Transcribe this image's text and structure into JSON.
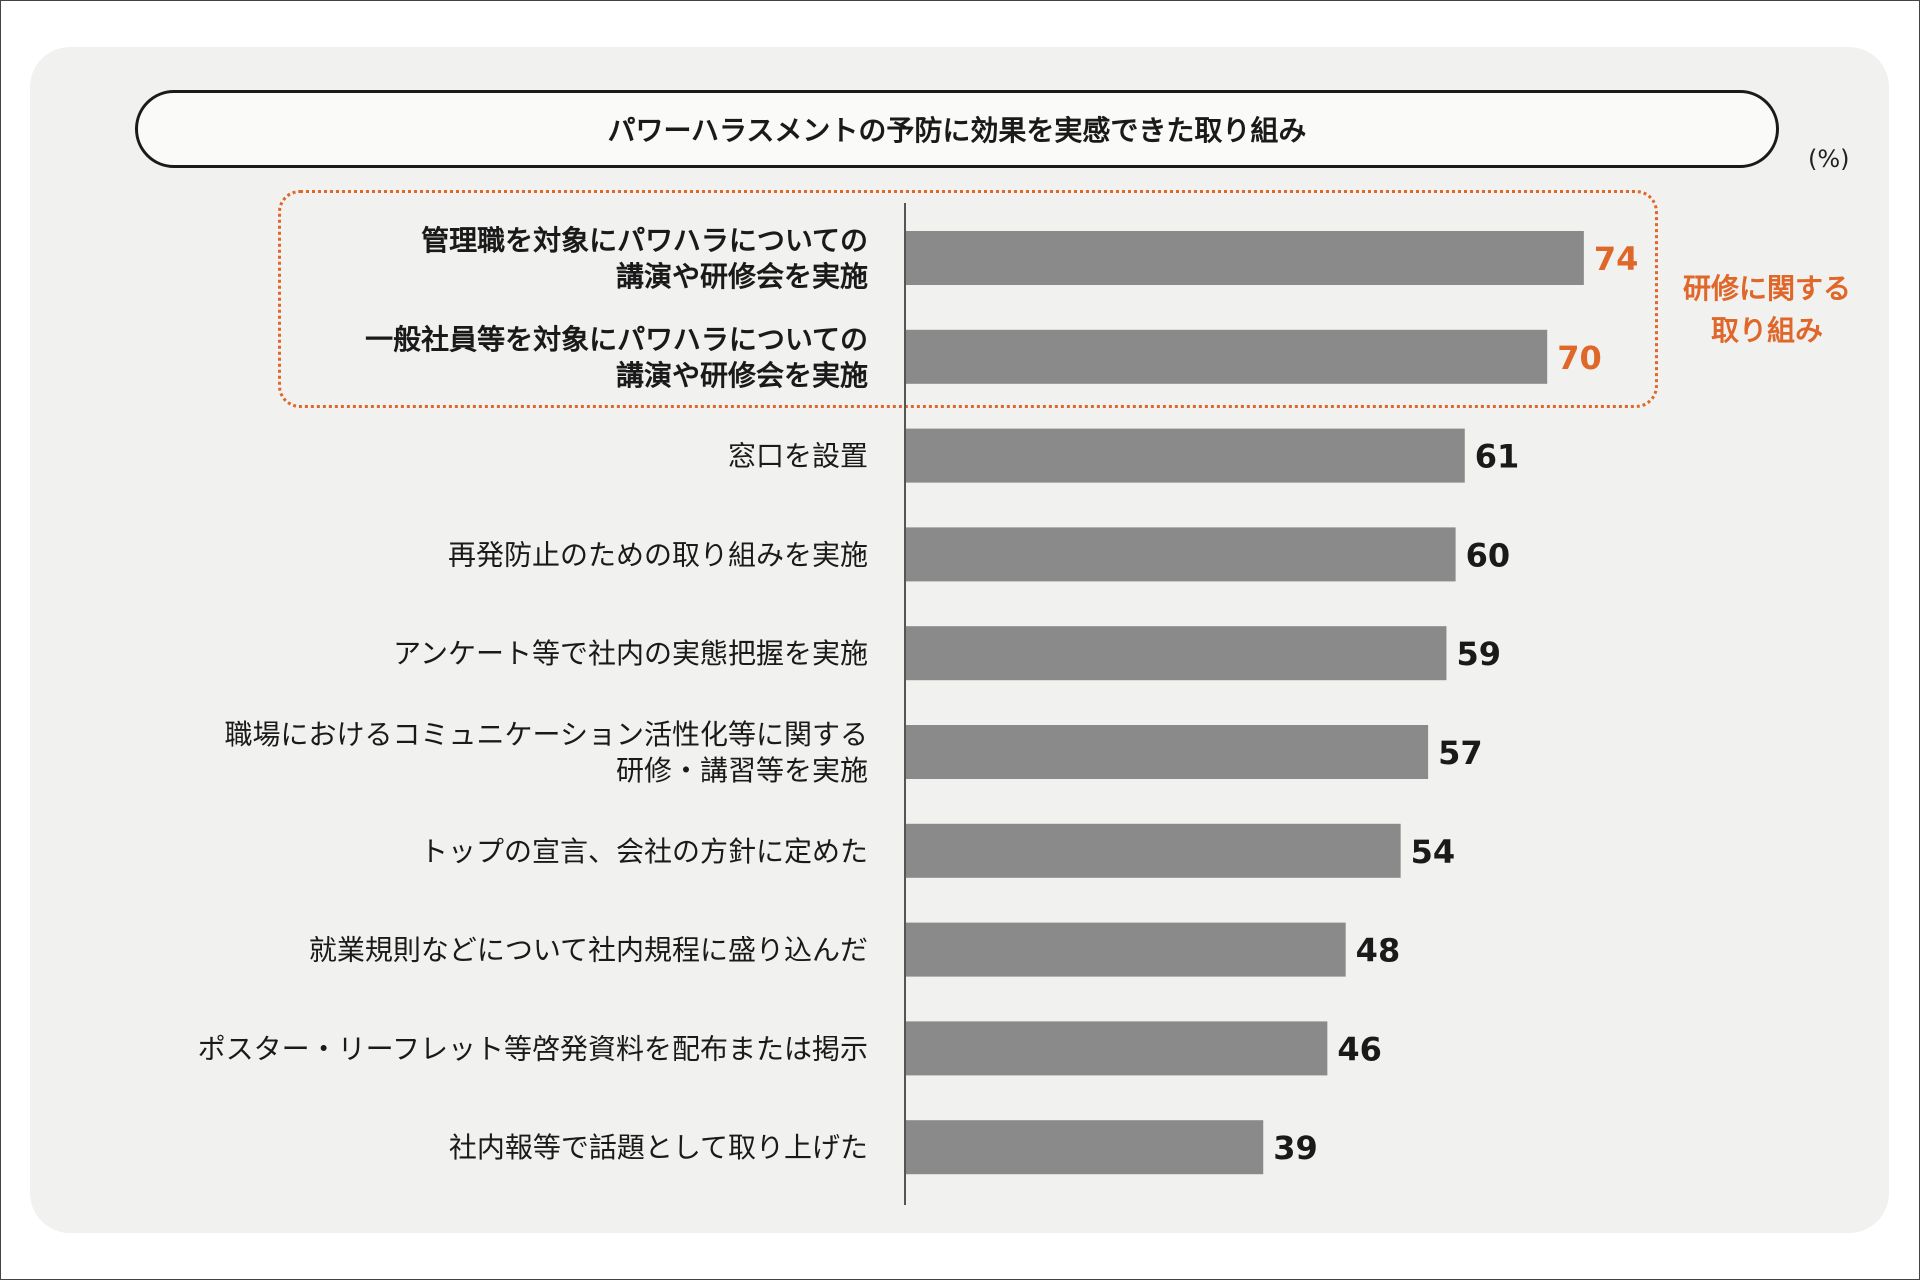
{
  "title": "パワーハラスメントの予防に効果を実感できた取り組み",
  "unit": "(%)",
  "group_label": "研修に関する\n取り組み",
  "colors": {
    "bar": "#8a8a8a",
    "highlight": "#e0672a",
    "text": "#1a1a1a"
  },
  "chart_data": {
    "type": "bar",
    "orientation": "horizontal",
    "title": "パワーハラスメントの予防に効果を実感できた取り組み",
    "unit": "%",
    "xlim": [
      0,
      100
    ],
    "grid": false,
    "categories": [
      [
        "管理職を対象にパワハラについての",
        "講演や研修会を実施"
      ],
      [
        "一般社員等を対象にパワハラについての",
        "講演や研修会を実施"
      ],
      [
        "窓口を設置"
      ],
      [
        "再発防止のための取り組みを実施"
      ],
      [
        "アンケート等で社内の実態把握を実施"
      ],
      [
        "職場におけるコミュニケーション活性化等に関する",
        "研修・講習等を実施"
      ],
      [
        "トップの宣言、会社の方針に定めた"
      ],
      [
        "就業規則などについて社内規程に盛り込んだ"
      ],
      [
        "ポスター・リーフレット等啓発資料を配布または掲示"
      ],
      [
        "社内報等で話題として取り上げた"
      ]
    ],
    "values": [
      74,
      70,
      61,
      60,
      59,
      57,
      54,
      48,
      46,
      39
    ],
    "highlighted": [
      true,
      true,
      false,
      false,
      false,
      false,
      false,
      false,
      false,
      false
    ]
  }
}
